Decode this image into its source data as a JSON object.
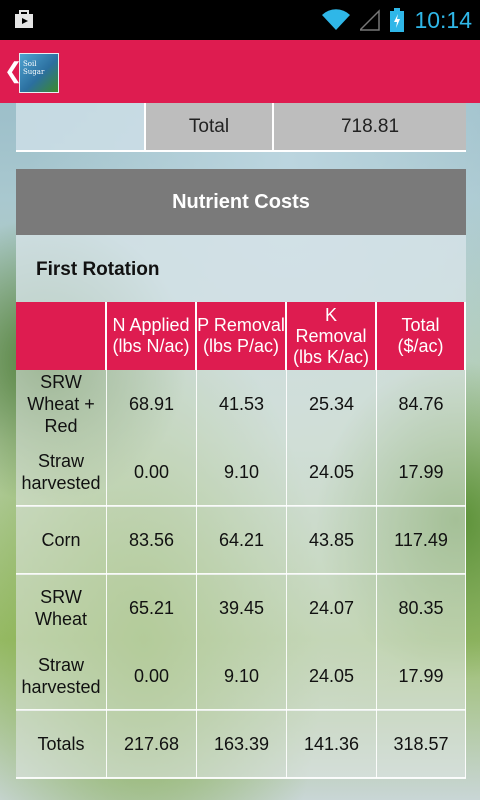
{
  "status_bar": {
    "time": "10:14",
    "icons": [
      "play-store-notification-icon",
      "wifi-icon",
      "signal-icon",
      "battery-charging-icon"
    ]
  },
  "action_bar": {
    "logo_text": "Soil Sugar",
    "colors": {
      "accent": "#de1c50"
    }
  },
  "summary_row": {
    "label": "Total",
    "value": "718.81"
  },
  "section": {
    "title": "Nutrient Costs",
    "subtitle": "First Rotation"
  },
  "table": {
    "headers": [
      "",
      "N Applied (lbs N/ac)",
      "P Removal (lbs P/ac)",
      "K Removal (lbs K/ac)",
      "Total ($/ac)"
    ],
    "rows": [
      [
        "SRW Wheat + Red",
        "68.91",
        "41.53",
        "25.34",
        "84.76"
      ],
      [
        "Straw harvested",
        "0.00",
        "9.10",
        "24.05",
        "17.99"
      ],
      [
        "Corn",
        "83.56",
        "64.21",
        "43.85",
        "117.49"
      ],
      [
        "SRW Wheat",
        "65.21",
        "39.45",
        "24.07",
        "80.35"
      ],
      [
        "Straw harvested",
        "0.00",
        "9.10",
        "24.05",
        "17.99"
      ],
      [
        "Totals",
        "217.68",
        "163.39",
        "141.36",
        "318.57"
      ]
    ]
  }
}
